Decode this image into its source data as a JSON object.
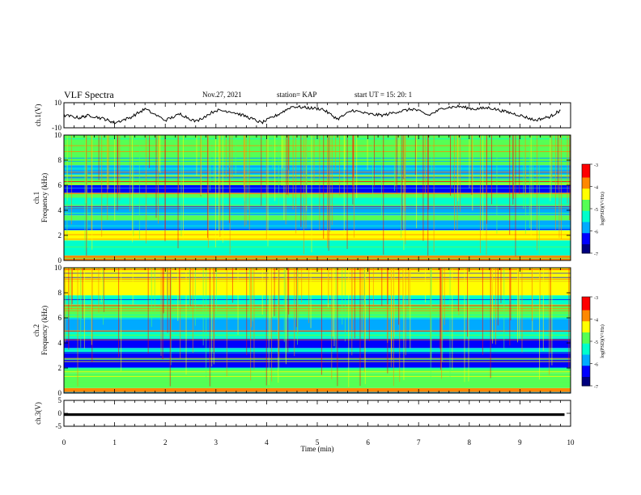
{
  "header": {
    "title": "VLF Spectra",
    "date": "Nov.27, 2021",
    "station": "station= KAP",
    "start": "start  UT  =   15: 20: 1"
  },
  "chart_data": [
    {
      "type": "line",
      "panel": "ch1-waveform",
      "ylabel": "ch.1(V)",
      "ylim": [
        -10,
        10
      ],
      "yticks": [
        "10",
        "-10"
      ],
      "xlim": [
        0,
        10
      ],
      "x": [
        0,
        0.3,
        0.5,
        0.8,
        1.0,
        1.3,
        1.6,
        2.0,
        2.3,
        2.6,
        3.0,
        3.3,
        3.6,
        3.9,
        4.2,
        4.5,
        4.8,
        5.1,
        5.4,
        5.7,
        6.0,
        6.3,
        6.6,
        6.9,
        7.2,
        7.5,
        7.8,
        8.1,
        8.4,
        8.7,
        9.0,
        9.3,
        9.6,
        9.8
      ],
      "y": [
        0,
        -2,
        0,
        -3,
        -6,
        -2,
        5,
        -4,
        1,
        -5,
        4,
        3,
        -1,
        -6,
        0,
        7,
        6,
        5,
        -3,
        4,
        1,
        0,
        3,
        5,
        0,
        6,
        7,
        5,
        6,
        3,
        0,
        -4,
        -1,
        4
      ]
    },
    {
      "type": "heatmap",
      "panel": "ch1-spectrogram",
      "ylabel": "ch.1\nFrequency  (kHz)",
      "ylim": [
        0,
        10
      ],
      "yticks": [
        "0",
        "2",
        "4",
        "6",
        "8",
        "10"
      ],
      "xlim": [
        0,
        10
      ],
      "colorbar": {
        "label": "log(PSD)(V²/Hz)",
        "range": [
          -7,
          -3
        ],
        "ticks": [
          "-3",
          "-4",
          "-5",
          "-6",
          "-7"
        ]
      },
      "band_levels": [
        {
          "from": 0.0,
          "to": 0.4,
          "level": -4.0
        },
        {
          "from": 0.4,
          "to": 1.6,
          "level": -5.1
        },
        {
          "from": 1.6,
          "to": 2.4,
          "level": -4.2
        },
        {
          "from": 2.4,
          "to": 3.2,
          "level": -6.0
        },
        {
          "from": 3.2,
          "to": 3.6,
          "level": -5.0
        },
        {
          "from": 3.6,
          "to": 4.2,
          "level": -6.0
        },
        {
          "from": 4.2,
          "to": 5.0,
          "level": -5.2
        },
        {
          "from": 5.0,
          "to": 5.4,
          "level": -4.8
        },
        {
          "from": 5.4,
          "to": 6.0,
          "level": -6.2
        },
        {
          "from": 6.0,
          "to": 6.8,
          "level": -5.0
        },
        {
          "from": 6.8,
          "to": 7.6,
          "level": -5.6
        },
        {
          "from": 7.6,
          "to": 10.0,
          "level": -4.7
        }
      ]
    },
    {
      "type": "heatmap",
      "panel": "ch2-spectrogram",
      "ylabel": "ch.2\nFrequency  (kHz)",
      "ylim": [
        0,
        10
      ],
      "yticks": [
        "0",
        "2",
        "4",
        "6",
        "8",
        "10"
      ],
      "xlim": [
        0,
        10
      ],
      "colorbar": {
        "label": "log(PSD)(V²/Hz)",
        "range": [
          -7,
          -3
        ],
        "ticks": [
          "-3",
          "-4",
          "-5",
          "-6",
          "-7"
        ]
      },
      "band_levels": [
        {
          "from": 0.0,
          "to": 0.4,
          "level": -4.0
        },
        {
          "from": 0.4,
          "to": 1.6,
          "level": -5.0
        },
        {
          "from": 1.6,
          "to": 2.0,
          "level": -4.8
        },
        {
          "from": 2.0,
          "to": 3.2,
          "level": -6.2
        },
        {
          "from": 3.2,
          "to": 3.6,
          "level": -5.4
        },
        {
          "from": 3.6,
          "to": 4.4,
          "level": -6.4
        },
        {
          "from": 4.4,
          "to": 5.0,
          "level": -5.2
        },
        {
          "from": 5.0,
          "to": 6.0,
          "level": -6.0
        },
        {
          "from": 6.0,
          "to": 7.0,
          "level": -5.0
        },
        {
          "from": 7.0,
          "to": 7.8,
          "level": -5.4
        },
        {
          "from": 7.8,
          "to": 10.0,
          "level": -4.4
        }
      ]
    },
    {
      "type": "line",
      "panel": "ch3-waveform",
      "ylabel": "ch.3(V)",
      "ylim": [
        -5,
        5
      ],
      "yticks": [
        "5",
        "0",
        "-5"
      ],
      "xlim": [
        0,
        10
      ],
      "y_band": [
        -1,
        0
      ]
    }
  ],
  "x_axis": {
    "label": "Time  (min)",
    "ticks": [
      "0",
      "1",
      "2",
      "3",
      "4",
      "5",
      "6",
      "7",
      "8",
      "9",
      "10"
    ]
  },
  "colors": {
    "line": "#000000",
    "colormap": [
      "#00007f",
      "#0000ff",
      "#00aaff",
      "#00ffcc",
      "#55ff55",
      "#ffff00",
      "#ff8800",
      "#ff0000"
    ]
  }
}
